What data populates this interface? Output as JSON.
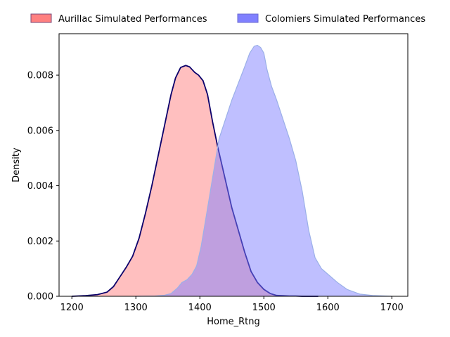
{
  "chart_data": {
    "type": "area",
    "title": "",
    "xlabel": "Home_Rtng",
    "ylabel": "Density",
    "xlim": [
      1180,
      1725
    ],
    "ylim": [
      0,
      0.0095
    ],
    "x_ticks": [
      1200,
      1300,
      1400,
      1500,
      1600,
      1700
    ],
    "y_ticks": [
      0.0,
      0.002,
      0.004,
      0.006,
      0.008
    ],
    "y_tick_labels": [
      "0.000",
      "0.002",
      "0.004",
      "0.006",
      "0.008"
    ],
    "grid": false,
    "legend_placement": "top-center-outside",
    "series": [
      {
        "name": "Aurillac Simulated Performances",
        "fill": "#ff8080",
        "line": "#0b006b",
        "x": [
          1200,
          1220,
          1240,
          1255,
          1265,
          1275,
          1285,
          1295,
          1305,
          1315,
          1325,
          1335,
          1345,
          1355,
          1362,
          1370,
          1378,
          1384,
          1388,
          1392,
          1398,
          1405,
          1412,
          1420,
          1428,
          1435,
          1442,
          1450,
          1460,
          1470,
          1480,
          1490,
          1500,
          1510,
          1520,
          1530,
          1540,
          1550,
          1560,
          1575,
          1585
        ],
        "y": [
          0.0,
          2e-05,
          6e-05,
          0.00015,
          0.00035,
          0.0007,
          0.00105,
          0.00145,
          0.0021,
          0.003,
          0.004,
          0.0051,
          0.0062,
          0.0073,
          0.0079,
          0.00828,
          0.00835,
          0.0083,
          0.0082,
          0.0081,
          0.008,
          0.0078,
          0.0073,
          0.0063,
          0.0054,
          0.0047,
          0.004,
          0.0032,
          0.0024,
          0.0016,
          0.0009,
          0.0005,
          0.00025,
          0.0001,
          3e-05,
          2e-05,
          1e-05,
          1e-05,
          0.0,
          0.0,
          0.0
        ]
      },
      {
        "name": "Colomiers Simulated Performances",
        "fill": "#8080ff",
        "line": "#9bb0e8",
        "x": [
          1300,
          1330,
          1345,
          1355,
          1365,
          1372,
          1380,
          1388,
          1395,
          1402,
          1410,
          1420,
          1430,
          1440,
          1450,
          1460,
          1470,
          1478,
          1485,
          1490,
          1495,
          1500,
          1505,
          1512,
          1520,
          1530,
          1540,
          1550,
          1560,
          1570,
          1580,
          1590,
          1600,
          1615,
          1630,
          1650,
          1670,
          1690,
          1700
        ],
        "y": [
          0.0,
          1e-05,
          4e-05,
          0.0001,
          0.0003,
          0.0005,
          0.0006,
          0.0008,
          0.0011,
          0.0018,
          0.0029,
          0.0043,
          0.0057,
          0.0064,
          0.0071,
          0.0077,
          0.0083,
          0.0088,
          0.00905,
          0.00908,
          0.009,
          0.0088,
          0.0082,
          0.0076,
          0.0071,
          0.0064,
          0.0057,
          0.0049,
          0.0038,
          0.0024,
          0.0014,
          0.001,
          0.0008,
          0.0005,
          0.00025,
          8e-05,
          3e-05,
          1e-05,
          0.0
        ]
      }
    ]
  }
}
